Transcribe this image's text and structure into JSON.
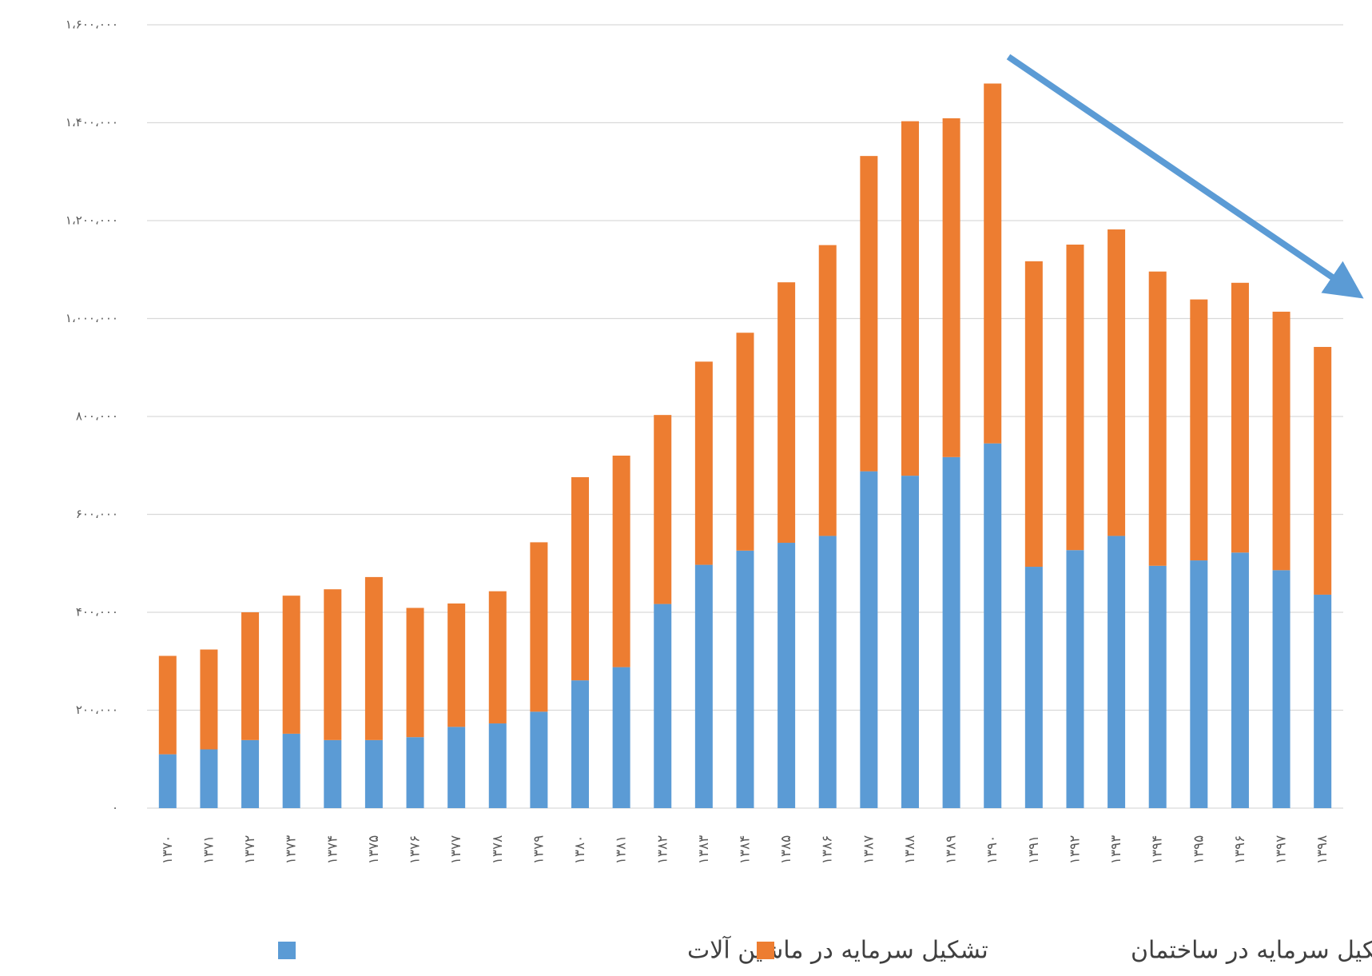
{
  "chart_data": {
    "type": "stacked_bar",
    "categories": [
      "۱۳۷۰",
      "۱۳۷۱",
      "۱۳۷۲",
      "۱۳۷۳",
      "۱۳۷۴",
      "۱۳۷۵",
      "۱۳۷۶",
      "۱۳۷۷",
      "۱۳۷۸",
      "۱۳۷۹",
      "۱۳۸۰",
      "۱۳۸۱",
      "۱۳۸۲",
      "۱۳۸۳",
      "۱۳۸۴",
      "۱۳۸۵",
      "۱۳۸۶",
      "۱۳۸۷",
      "۱۳۸۸",
      "۱۳۸۹",
      "۱۳۹۰",
      "۱۳۹۱",
      "۱۳۹۲",
      "۱۳۹۳",
      "۱۳۹۴",
      "۱۳۹۵",
      "۱۳۹۶",
      "۱۳۹۷",
      "۱۳۹۸"
    ],
    "series": [
      {
        "name": "تشکیل سرمایه در ماشین آلات",
        "color": "#5b9bd5",
        "values": [
          110000,
          120000,
          139000,
          152000,
          139000,
          139000,
          145000,
          166000,
          173000,
          197000,
          261000,
          288000,
          417000,
          497000,
          526000,
          542000,
          556000,
          688000,
          679000,
          717000,
          745000,
          493000,
          527000,
          556000,
          495000,
          506000,
          522000,
          486000,
          436000
        ]
      },
      {
        "name": "تشکیل سرمایه در ساختمان",
        "color": "#ed7d31",
        "values": [
          201000,
          204000,
          261000,
          282000,
          308000,
          333000,
          264000,
          252000,
          270000,
          346000,
          415000,
          432000,
          386000,
          415000,
          445000,
          532000,
          594000,
          644000,
          724000,
          692000,
          735000,
          624000,
          624000,
          626000,
          601000,
          533000,
          551000,
          528000,
          506000
        ]
      }
    ],
    "ylim": [
      0,
      1600000
    ],
    "yticks": [
      {
        "value": 0,
        "label": "۰"
      },
      {
        "value": 200000,
        "label": "۲۰۰،۰۰۰"
      },
      {
        "value": 400000,
        "label": "۴۰۰،۰۰۰"
      },
      {
        "value": 600000,
        "label": "۶۰۰،۰۰۰"
      },
      {
        "value": 800000,
        "label": "۸۰۰،۰۰۰"
      },
      {
        "value": 1000000,
        "label": "۱،۰۰۰،۰۰۰"
      },
      {
        "value": 1200000,
        "label": "۱،۲۰۰،۰۰۰"
      },
      {
        "value": 1400000,
        "label": "۱،۴۰۰،۰۰۰"
      },
      {
        "value": 1600000,
        "label": "۱،۶۰۰،۰۰۰"
      }
    ],
    "grid": true
  }
}
